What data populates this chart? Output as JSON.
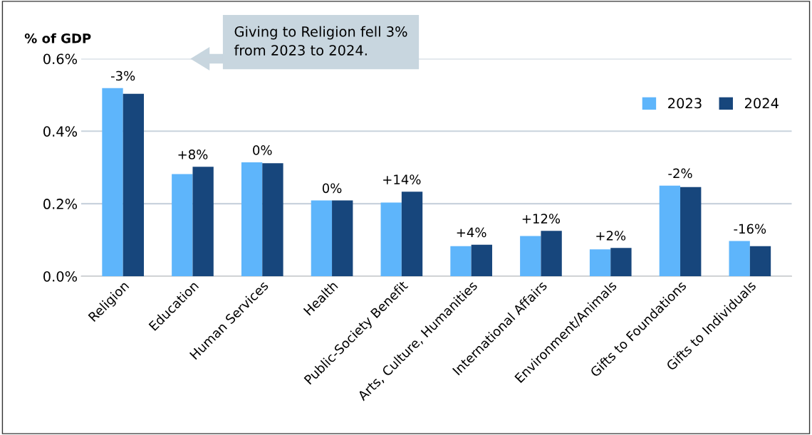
{
  "chart_data": {
    "type": "bar",
    "ylabel": "% of GDP",
    "categories": [
      "Religion",
      "Education",
      "Human Services",
      "Health",
      "Public-Society Benefit",
      "Arts, Culture, Humanities",
      "International Affairs",
      "Environment/Animals",
      "Gifts to Foundations",
      "Gifts to Individuals"
    ],
    "series": [
      {
        "name": "2023",
        "color": "#5eb5fb",
        "values": [
          0.519,
          0.282,
          0.314,
          0.209,
          0.203,
          0.083,
          0.111,
          0.074,
          0.25,
          0.097
        ]
      },
      {
        "name": "2024",
        "color": "#17467c",
        "values": [
          0.503,
          0.302,
          0.312,
          0.209,
          0.233,
          0.087,
          0.125,
          0.078,
          0.246,
          0.083
        ]
      }
    ],
    "ylim": [
      0,
      0.6
    ],
    "yticks": [
      {
        "value": 0,
        "label": "0.0%"
      },
      {
        "value": 0.2,
        "label": "0.2%"
      },
      {
        "value": 0.4,
        "label": "0.4%"
      },
      {
        "value": 0.6,
        "label": "0.6%"
      }
    ],
    "grid": "y",
    "legend": "top right",
    "annotations": [
      {
        "text": "-3%",
        "x": "Religion",
        "y": 0.519
      },
      {
        "text": "+8%",
        "x": "Education",
        "y": 0.302
      },
      {
        "text": "0%",
        "x": "Human Services",
        "y": 0.314
      },
      {
        "text": "0%",
        "x": "Health",
        "y": 0.209
      },
      {
        "text": "+14%",
        "x": "Public-Society Benefit",
        "y": 0.233
      },
      {
        "text": "+4%",
        "x": "Arts, Culture, Humanities",
        "y": 0.087
      },
      {
        "text": "+12%",
        "x": "International Affairs",
        "y": 0.125
      },
      {
        "text": "+2%",
        "x": "Environment/Animals",
        "y": 0.078
      },
      {
        "text": "-2%",
        "x": "Gifts to Foundations",
        "y": 0.25
      },
      {
        "text": "-16%",
        "x": "Gifts to Individuals",
        "y": 0.097
      },
      "Giving to Religion fell 3%\nfrom 2023 to 2024."
    ]
  }
}
